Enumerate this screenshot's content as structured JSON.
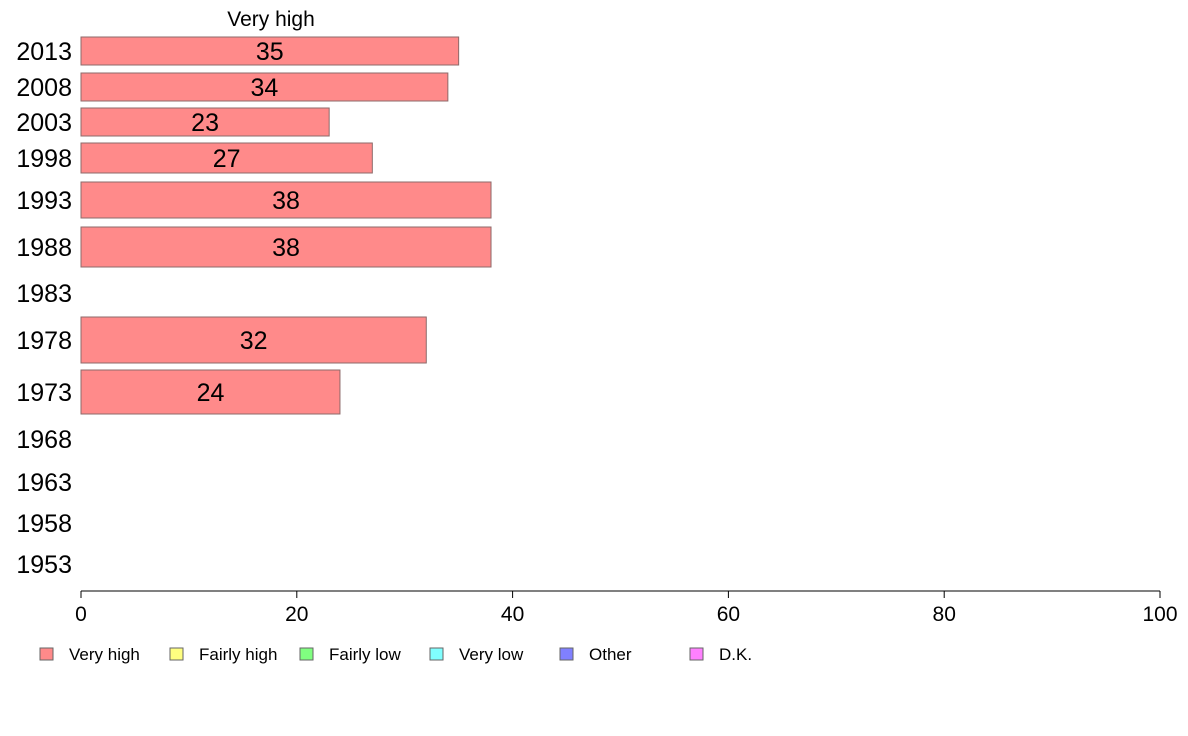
{
  "chart_data": {
    "type": "bar",
    "orientation": "horizontal",
    "stacked": true,
    "categories": [
      "2013",
      "2008",
      "2003",
      "1998",
      "1993",
      "1988",
      "1983",
      "1978",
      "1973",
      "1968",
      "1963",
      "1958",
      "1953"
    ],
    "series": [
      {
        "name": "Very high",
        "color": "#ff8a8a",
        "values": [
          35,
          34,
          23,
          27,
          38,
          38,
          null,
          32,
          24,
          null,
          null,
          null,
          null
        ]
      }
    ],
    "series_title": "Very high",
    "xlim": [
      0,
      100
    ],
    "xticks": [
      0,
      20,
      40,
      60,
      80,
      100
    ],
    "legend": [
      {
        "label": "Very high",
        "color": "#ff8a8a"
      },
      {
        "label": "Fairly high",
        "color": "#ffff80"
      },
      {
        "label": "Fairly low",
        "color": "#80ff80"
      },
      {
        "label": "Very low",
        "color": "#80ffff"
      },
      {
        "label": "Other",
        "color": "#8080ff"
      },
      {
        "label": "D.K.",
        "color": "#ff80ff"
      }
    ],
    "legend_position": "bottom",
    "grid": false
  }
}
